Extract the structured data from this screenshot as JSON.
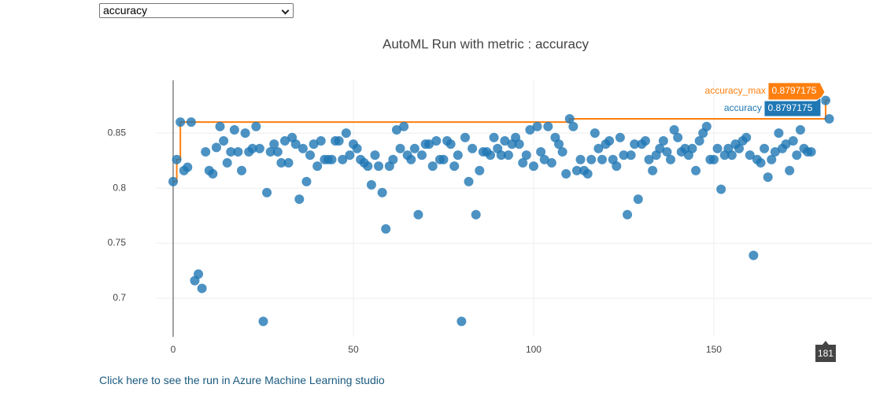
{
  "dropdown": {
    "selected": "accuracy"
  },
  "link": "Click here to see the run in Azure Machine Learning studio",
  "chart_data": {
    "type": "scatter",
    "title": "AutoML Run with metric : accuracy",
    "xlim": [
      -4.8,
      193.9
    ],
    "ylim": [
      0.665,
      0.898
    ],
    "xticks": [
      0,
      50,
      100,
      150
    ],
    "yticks": [
      0.7,
      0.75,
      0.8,
      0.85
    ],
    "grid": true,
    "series": [
      {
        "name": "accuracy",
        "color": "#1f77b4",
        "x": [
          0,
          1,
          2,
          3,
          4,
          5,
          6,
          7,
          8,
          9,
          10,
          11,
          12,
          13,
          14,
          15,
          16,
          17,
          18,
          19,
          20,
          21,
          22,
          23,
          24,
          25,
          26,
          27,
          28,
          29,
          30,
          31,
          32,
          33,
          34,
          35,
          36,
          37,
          38,
          39,
          40,
          41,
          42,
          43,
          44,
          45,
          46,
          47,
          48,
          49,
          50,
          51,
          52,
          53,
          54,
          55,
          56,
          57,
          58,
          59,
          60,
          61,
          62,
          63,
          64,
          65,
          66,
          67,
          68,
          69,
          70,
          71,
          72,
          73,
          74,
          75,
          76,
          77,
          78,
          79,
          80,
          81,
          82,
          83,
          84,
          85,
          86,
          87,
          88,
          89,
          90,
          91,
          92,
          93,
          94,
          95,
          96,
          97,
          98,
          99,
          100,
          101,
          102,
          103,
          104,
          105,
          106,
          107,
          108,
          109,
          110,
          111,
          112,
          113,
          114,
          115,
          116,
          117,
          118,
          119,
          120,
          121,
          122,
          123,
          124,
          125,
          126,
          127,
          128,
          129,
          130,
          131,
          132,
          133,
          134,
          135,
          136,
          137,
          138,
          139,
          140,
          141,
          142,
          143,
          144,
          145,
          146,
          147,
          148,
          149,
          150,
          151,
          152,
          153,
          154,
          155,
          156,
          157,
          158,
          159,
          160,
          161,
          162,
          163,
          164,
          165,
          166,
          167,
          168,
          169,
          170,
          171,
          172,
          173,
          174,
          175,
          176,
          177,
          181,
          182
        ],
        "values": [
          0.806,
          0.826,
          0.86,
          0.816,
          0.819,
          0.86,
          0.716,
          0.722,
          0.709,
          0.833,
          0.816,
          0.813,
          0.837,
          0.856,
          0.843,
          0.823,
          0.833,
          0.853,
          0.833,
          0.816,
          0.85,
          0.833,
          0.836,
          0.856,
          0.836,
          0.679,
          0.796,
          0.833,
          0.84,
          0.833,
          0.823,
          0.843,
          0.823,
          0.846,
          0.84,
          0.79,
          0.836,
          0.806,
          0.83,
          0.84,
          0.82,
          0.843,
          0.826,
          0.826,
          0.826,
          0.843,
          0.843,
          0.826,
          0.85,
          0.83,
          0.84,
          0.836,
          0.826,
          0.823,
          0.82,
          0.803,
          0.83,
          0.82,
          0.796,
          0.763,
          0.82,
          0.826,
          0.853,
          0.836,
          0.856,
          0.83,
          0.826,
          0.836,
          0.776,
          0.83,
          0.84,
          0.84,
          0.82,
          0.843,
          0.826,
          0.826,
          0.843,
          0.84,
          0.82,
          0.83,
          0.679,
          0.846,
          0.806,
          0.836,
          0.776,
          0.816,
          0.833,
          0.833,
          0.83,
          0.846,
          0.836,
          0.83,
          0.843,
          0.83,
          0.84,
          0.846,
          0.84,
          0.823,
          0.83,
          0.853,
          0.82,
          0.856,
          0.833,
          0.826,
          0.856,
          0.823,
          0.846,
          0.84,
          0.833,
          0.813,
          0.863,
          0.856,
          0.816,
          0.826,
          0.816,
          0.813,
          0.826,
          0.85,
          0.836,
          0.826,
          0.84,
          0.843,
          0.826,
          0.82,
          0.846,
          0.83,
          0.776,
          0.83,
          0.84,
          0.79,
          0.84,
          0.843,
          0.826,
          0.816,
          0.83,
          0.836,
          0.843,
          0.833,
          0.826,
          0.853,
          0.846,
          0.833,
          0.836,
          0.83,
          0.836,
          0.816,
          0.843,
          0.85,
          0.856,
          0.826,
          0.826,
          0.836,
          0.799,
          0.83,
          0.836,
          0.83,
          0.84,
          0.836,
          0.843,
          0.846,
          0.83,
          0.739,
          0.826,
          0.823,
          0.836,
          0.81,
          0.826,
          0.833,
          0.85,
          0.836,
          0.84,
          0.816,
          0.843,
          0.83,
          0.853,
          0.836,
          0.833,
          0.833,
          0.8797175,
          0.863
        ]
      },
      {
        "name": "accuracy_max",
        "color": "#ff7f0e",
        "x": [
          0,
          1,
          2,
          110,
          181,
          182
        ],
        "values": [
          0.806,
          0.826,
          0.86,
          0.863,
          0.8797175,
          0.8797175
        ]
      }
    ],
    "hover": {
      "x": 181,
      "x_label": "181",
      "labels": [
        "0.8797175",
        "0.8797175"
      ]
    }
  }
}
